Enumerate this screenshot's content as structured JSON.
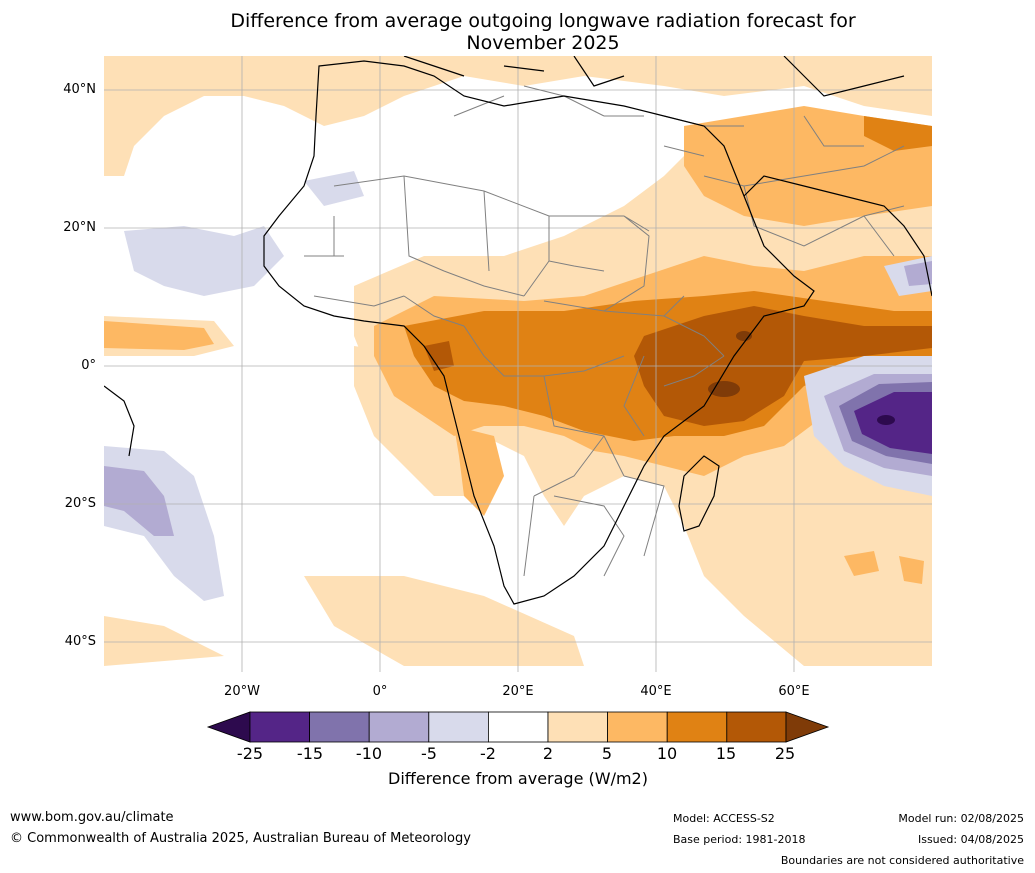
{
  "title": {
    "line1": "Difference from average outgoing longwave radiation forecast for",
    "line2": "November 2025"
  },
  "map": {
    "region": "Africa and surrounding oceans",
    "lat_labels": [
      "40°N",
      "20°N",
      "0°",
      "20°S",
      "40°S"
    ],
    "lon_labels": [
      "20°W",
      "0°",
      "20°E",
      "40°E",
      "60°E"
    ],
    "gridlines": true,
    "colors": {
      "ocean_land_neutral": "#ffffff",
      "coast": "#000000",
      "borders": "#808080"
    }
  },
  "colorbar": {
    "ticks": [
      "-25",
      "-15",
      "-10",
      "-5",
      "-2",
      "2",
      "5",
      "10",
      "15",
      "25"
    ],
    "label": "Difference from average (W/m2)",
    "colors": {
      "lt_-25": "#2d0a4e",
      "-25_-15": "#542587",
      "-15_-10": "#8073ac",
      "-10_-5": "#b2abd2",
      "-5_-2": "#d8daeb",
      "-2_2": "#ffffff",
      "2_5": "#fee0b6",
      "5_10": "#fdb863",
      "10_15": "#e08214",
      "15_25": "#b35806",
      "gt_25": "#7f3b08"
    }
  },
  "footer": {
    "url": "www.bom.gov.au/climate",
    "copyright": "© Commonwealth of Australia 2025, Australian Bureau of Meteorology",
    "model": "Model: ACCESS-S2",
    "base_period": "Base period: 1981-2018",
    "model_run": "Model run: 02/08/2025",
    "issued": "Issued: 04/08/2025",
    "disclaimer": "Boundaries are not considered authoritative"
  }
}
